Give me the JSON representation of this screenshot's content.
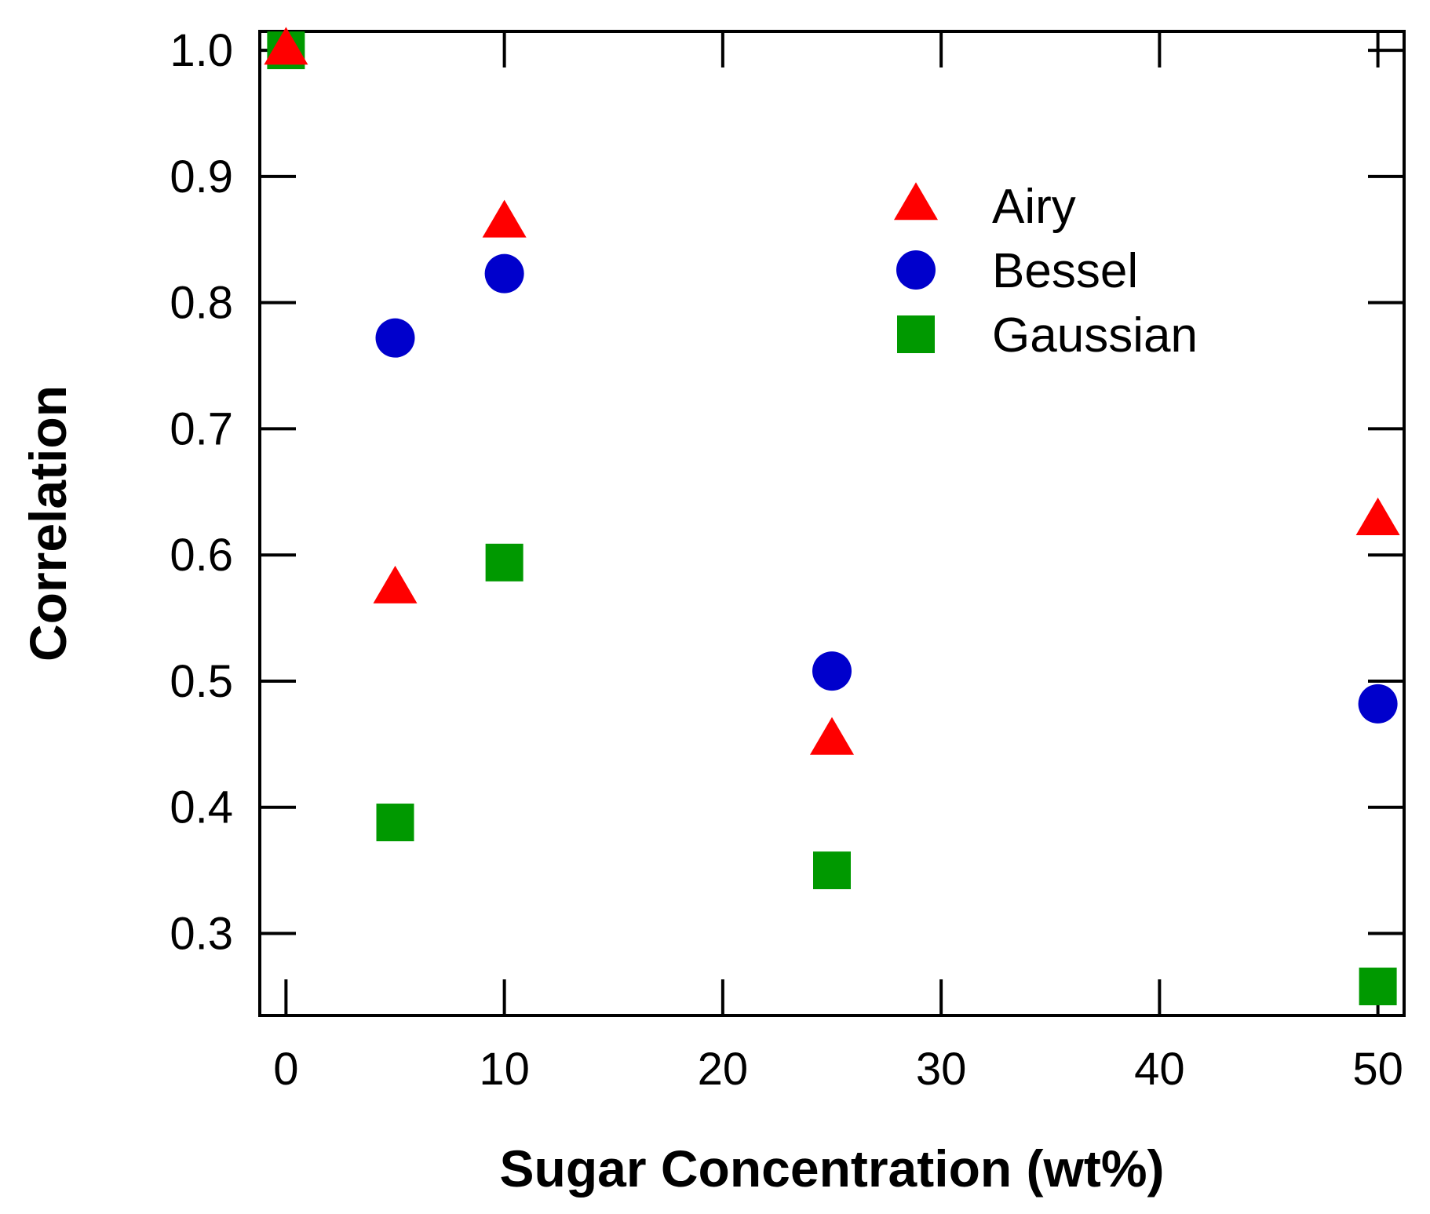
{
  "chart_data": {
    "type": "scatter",
    "title": "",
    "xlabel": "Sugar Concentration (wt%)",
    "ylabel": "Correlation",
    "xlim": [
      -1.2,
      51.2
    ],
    "ylim": [
      0.235,
      1.015
    ],
    "xticks": [
      0,
      10,
      20,
      30,
      40,
      50
    ],
    "yticks": [
      0.3,
      0.4,
      0.5,
      0.6,
      0.7,
      0.8,
      0.9,
      1.0
    ],
    "xtick_labels": [
      "0",
      "10",
      "20",
      "30",
      "40",
      "50"
    ],
    "ytick_labels": [
      "0.3",
      "0.4",
      "0.5",
      "0.6",
      "0.7",
      "0.8",
      "0.9",
      "1.0"
    ],
    "grid": false,
    "legend_position": "upper-right",
    "series": [
      {
        "name": "Airy",
        "marker": "triangle",
        "color": "#ff0000",
        "x": [
          0,
          5,
          10,
          25,
          50
        ],
        "y": [
          1.0,
          0.573,
          0.863,
          0.453,
          0.627
        ]
      },
      {
        "name": "Bessel",
        "marker": "circle",
        "color": "#0000cc",
        "x": [
          5,
          10,
          25,
          50
        ],
        "y": [
          0.772,
          0.823,
          0.508,
          0.482
        ]
      },
      {
        "name": "Gaussian",
        "marker": "square",
        "color": "#009900",
        "x": [
          0,
          5,
          10,
          25,
          50
        ],
        "y": [
          1.0,
          0.388,
          0.594,
          0.35,
          0.258
        ]
      }
    ]
  }
}
